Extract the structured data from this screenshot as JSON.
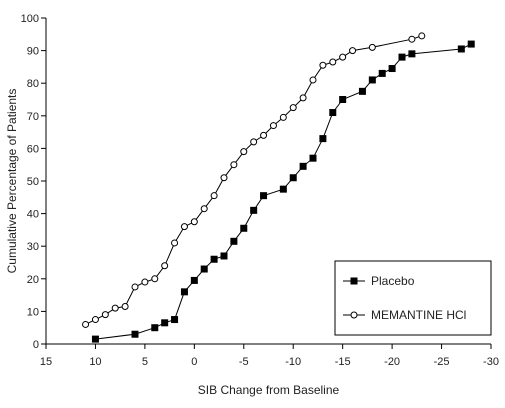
{
  "chart_data": {
    "type": "line",
    "xlabel": "SIB Change from Baseline",
    "ylabel": "Cumulative Percentage of Patients",
    "xlim": [
      15,
      -30
    ],
    "ylim": [
      0,
      100
    ],
    "x_ticks": [
      15,
      10,
      5,
      0,
      -5,
      -10,
      -15,
      -20,
      -25,
      -30
    ],
    "y_ticks": [
      0,
      10,
      20,
      30,
      40,
      50,
      60,
      70,
      80,
      90,
      100
    ],
    "grid": false,
    "legend_position": "bottom-right",
    "series": [
      {
        "name": "Placebo",
        "marker": "filled-square",
        "color": "#000000",
        "x": [
          10,
          6,
          4,
          3,
          2,
          1,
          0,
          -1,
          -2,
          -3,
          -4,
          -5,
          -6,
          -7,
          -9,
          -10,
          -11,
          -12,
          -13,
          -14,
          -15,
          -17,
          -18,
          -19,
          -20,
          -21,
          -22,
          -27,
          -28
        ],
        "y": [
          1.5,
          3,
          5,
          6.5,
          7.5,
          16,
          19.5,
          23,
          26,
          27,
          31.5,
          35.5,
          41,
          45.5,
          47.5,
          51,
          54.5,
          57,
          63,
          71,
          75,
          77.5,
          81,
          83,
          84.5,
          88,
          89,
          90.5,
          92
        ]
      },
      {
        "name": "MEMANTINE HCl",
        "marker": "open-circle",
        "color": "#000000",
        "x": [
          11,
          10,
          9,
          8,
          7,
          6,
          5,
          4,
          3,
          2,
          1,
          0,
          -1,
          -2,
          -3,
          -4,
          -5,
          -6,
          -7,
          -8,
          -9,
          -10,
          -11,
          -12,
          -13,
          -14,
          -15,
          -16,
          -18,
          -22,
          -23
        ],
        "y": [
          6,
          7.5,
          9,
          11,
          11.5,
          17.5,
          19,
          20,
          24,
          31,
          36,
          37.5,
          41.5,
          45.5,
          51,
          55,
          59,
          62,
          64,
          67,
          69.5,
          72.5,
          75.5,
          81,
          85.5,
          86.5,
          88,
          90,
          91,
          93.5,
          94.5
        ]
      }
    ]
  }
}
